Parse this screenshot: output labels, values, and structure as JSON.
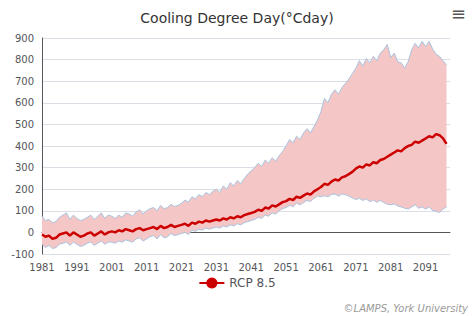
{
  "chart_data": {
    "type": "line",
    "title": "Cooling Degree Day(°Cday)",
    "annotations": [
      "≡",
      "©LAMPS, York University"
    ],
    "x": [
      1981,
      1982,
      1983,
      1984,
      1985,
      1986,
      1987,
      1988,
      1989,
      1990,
      1991,
      1992,
      1993,
      1994,
      1995,
      1996,
      1997,
      1998,
      1999,
      2000,
      2001,
      2002,
      2003,
      2004,
      2005,
      2006,
      2007,
      2008,
      2009,
      2010,
      2011,
      2012,
      2013,
      2014,
      2015,
      2016,
      2017,
      2018,
      2019,
      2020,
      2021,
      2022,
      2023,
      2024,
      2025,
      2026,
      2027,
      2028,
      2029,
      2030,
      2031,
      2032,
      2033,
      2034,
      2035,
      2036,
      2037,
      2038,
      2039,
      2040,
      2041,
      2042,
      2043,
      2044,
      2045,
      2046,
      2047,
      2048,
      2049,
      2050,
      2051,
      2052,
      2053,
      2054,
      2055,
      2056,
      2057,
      2058,
      2059,
      2060,
      2061,
      2062,
      2063,
      2064,
      2065,
      2066,
      2067,
      2068,
      2069,
      2070,
      2071,
      2072,
      2073,
      2074,
      2075,
      2076,
      2077,
      2078,
      2079,
      2080,
      2081,
      2082,
      2083,
      2084,
      2085,
      2086,
      2087,
      2088,
      2089,
      2090,
      2091,
      2092,
      2093,
      2094,
      2095,
      2096,
      2097
    ],
    "series": [
      {
        "type": "band",
        "color": "#f5c6c6",
        "lower": [
          -55,
          -70,
          -60,
          -75,
          -70,
          -55,
          -50,
          -45,
          -60,
          -45,
          -55,
          -65,
          -60,
          -50,
          -45,
          -60,
          -50,
          -40,
          -55,
          -45,
          -45,
          -50,
          -40,
          -45,
          -35,
          -40,
          -45,
          -30,
          -25,
          -40,
          -30,
          -20,
          -15,
          -30,
          -10,
          -25,
          -20,
          -5,
          -15,
          -10,
          -5,
          0,
          -10,
          10,
          5,
          15,
          10,
          20,
          15,
          20,
          25,
          20,
          30,
          25,
          35,
          30,
          40,
          35,
          45,
          50,
          55,
          60,
          70,
          65,
          80,
          75,
          90,
          85,
          100,
          110,
          115,
          125,
          120,
          135,
          128,
          138,
          148,
          143,
          158,
          168,
          165,
          170,
          165,
          175,
          178,
          168,
          178,
          175,
          168,
          160,
          152,
          158,
          148,
          155,
          142,
          150,
          140,
          148,
          138,
          130,
          128,
          132,
          122,
          118,
          112,
          108,
          118,
          128,
          112,
          118,
          108,
          118,
          102,
          98,
          92,
          108,
          118
        ],
        "upper": [
          75,
          55,
          60,
          45,
          50,
          70,
          80,
          90,
          60,
          80,
          65,
          55,
          60,
          70,
          80,
          60,
          75,
          90,
          65,
          80,
          75,
          65,
          80,
          70,
          90,
          85,
          75,
          95,
          105,
          85,
          100,
          110,
          115,
          100,
          125,
          110,
          115,
          130,
          120,
          125,
          135,
          150,
          140,
          165,
          155,
          175,
          165,
          185,
          175,
          190,
          200,
          185,
          215,
          200,
          230,
          215,
          240,
          225,
          250,
          270,
          285,
          300,
          320,
          305,
          335,
          320,
          345,
          330,
          355,
          375,
          400,
          430,
          415,
          445,
          430,
          460,
          480,
          460,
          490,
          520,
          560,
          620,
          600,
          640,
          660,
          640,
          670,
          690,
          710,
          735,
          760,
          795,
          770,
          805,
          785,
          815,
          795,
          830,
          845,
          870,
          810,
          830,
          790,
          785,
          760,
          790,
          845,
          875,
          855,
          885,
          860,
          885,
          850,
          825,
          815,
          795,
          775
        ]
      },
      {
        "type": "line",
        "color": "#a8c4e0",
        "values": [
          75,
          55,
          60,
          45,
          50,
          70,
          80,
          90,
          60,
          80,
          65,
          55,
          60,
          70,
          80,
          60,
          75,
          90,
          65,
          80,
          75,
          65,
          80,
          70,
          90,
          85,
          75,
          95,
          105,
          85,
          100,
          110,
          115,
          100,
          125,
          110,
          115,
          130,
          120,
          125,
          135,
          150,
          140,
          165,
          155,
          175,
          165,
          185,
          175,
          190,
          200,
          185,
          215,
          200,
          230,
          215,
          240,
          225,
          250,
          270,
          285,
          300,
          320,
          305,
          335,
          320,
          345,
          330,
          355,
          375,
          400,
          430,
          415,
          445,
          430,
          460,
          480,
          460,
          490,
          520,
          560,
          620,
          600,
          640,
          660,
          640,
          670,
          690,
          710,
          735,
          760,
          795,
          770,
          805,
          785,
          815,
          795,
          830,
          845,
          870,
          810,
          830,
          790,
          785,
          760,
          790,
          845,
          875,
          855,
          885,
          860,
          885,
          850,
          825,
          815,
          795,
          775
        ]
      },
      {
        "type": "line",
        "color": "#a8c4e0",
        "values": [
          -55,
          -70,
          -60,
          -75,
          -70,
          -55,
          -50,
          -45,
          -60,
          -45,
          -55,
          -65,
          -60,
          -50,
          -45,
          -60,
          -50,
          -40,
          -55,
          -45,
          -45,
          -50,
          -40,
          -45,
          -35,
          -40,
          -45,
          -30,
          -25,
          -40,
          -30,
          -20,
          -15,
          -30,
          -10,
          -25,
          -20,
          -5,
          -15,
          -10,
          -5,
          0,
          -10,
          10,
          5,
          15,
          10,
          20,
          15,
          20,
          25,
          20,
          30,
          25,
          35,
          30,
          40,
          35,
          45,
          50,
          55,
          60,
          70,
          65,
          80,
          75,
          90,
          85,
          100,
          110,
          115,
          125,
          120,
          135,
          128,
          138,
          148,
          143,
          158,
          168,
          165,
          170,
          165,
          175,
          178,
          168,
          178,
          175,
          168,
          160,
          152,
          158,
          148,
          155,
          142,
          150,
          140,
          148,
          138,
          130,
          128,
          132,
          122,
          118,
          112,
          108,
          118,
          128,
          112,
          118,
          108,
          118,
          102,
          98,
          92,
          108,
          118
        ]
      },
      {
        "type": "line",
        "name": "RCP 8.5",
        "color": "#cc0000",
        "values": [
          -10,
          -20,
          -15,
          -30,
          -25,
          -10,
          -5,
          0,
          -15,
          0,
          -10,
          -20,
          -15,
          -5,
          0,
          -15,
          -5,
          5,
          -10,
          0,
          5,
          0,
          10,
          5,
          15,
          10,
          5,
          15,
          20,
          10,
          15,
          20,
          25,
          15,
          30,
          20,
          25,
          35,
          25,
          30,
          35,
          40,
          30,
          45,
          40,
          50,
          45,
          55,
          50,
          55,
          60,
          55,
          65,
          60,
          70,
          65,
          75,
          70,
          80,
          85,
          90,
          95,
          105,
          100,
          115,
          110,
          125,
          120,
          130,
          140,
          145,
          155,
          150,
          165,
          160,
          170,
          180,
          175,
          190,
          200,
          210,
          225,
          220,
          235,
          245,
          240,
          255,
          260,
          270,
          280,
          295,
          305,
          300,
          315,
          310,
          325,
          320,
          335,
          340,
          350,
          360,
          370,
          380,
          375,
          390,
          400,
          405,
          420,
          415,
          425,
          435,
          445,
          440,
          455,
          450,
          435,
          410
        ]
      }
    ],
    "xlim": [
      1981,
      2098
    ],
    "xticks": [
      1981,
      1991,
      2001,
      2011,
      2021,
      2031,
      2041,
      2051,
      2061,
      2071,
      2081,
      2091
    ],
    "ylim": [
      -100,
      900
    ],
    "yticks": [
      -100,
      0,
      100,
      200,
      300,
      400,
      500,
      600,
      700,
      800,
      900
    ],
    "grid": true,
    "legend": "bottom"
  }
}
